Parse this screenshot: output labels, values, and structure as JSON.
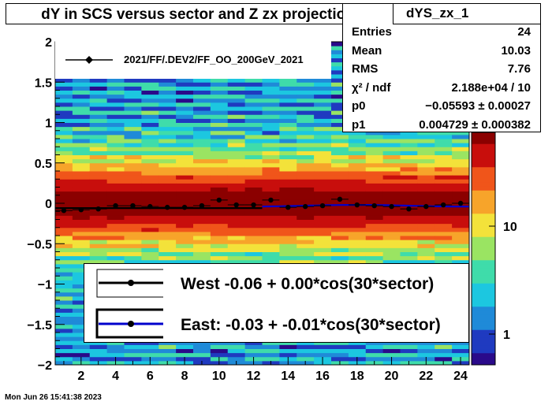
{
  "chart_data": {
    "type": "heatmap",
    "title": "dY in SCS versus sector and Z zx projection",
    "xlim": [
      0.5,
      24.5
    ],
    "ylim": [
      -2,
      2
    ],
    "x_ticks": [
      "2",
      "4",
      "6",
      "8",
      "10",
      "12",
      "14",
      "16",
      "18",
      "20",
      "22",
      "24"
    ],
    "y_ticks": [
      "−2",
      "−1.5",
      "−1",
      "−0.5",
      "0",
      "0.5",
      "1",
      "1.5",
      "2"
    ],
    "color_scale": {
      "type": "log",
      "ticks": [
        "1",
        "10"
      ],
      "palette": [
        "#2a0a8a",
        "#1f3ac0",
        "#1f8ad8",
        "#1cc7e0",
        "#3fdcaa",
        "#9ae462",
        "#f3e23a",
        "#f7a42a",
        "#f0551a",
        "#c80e0c",
        "#8b0000"
      ]
    },
    "profile": {
      "name": "2021/FF/.DEV2/FF_OO_200GeV_2021",
      "x": [
        1,
        2,
        3,
        4,
        5,
        6,
        7,
        8,
        9,
        10,
        11,
        12,
        13,
        14,
        15,
        16,
        17,
        18,
        19,
        20,
        21,
        22,
        23,
        24
      ],
      "y": [
        -0.09,
        -0.08,
        -0.07,
        -0.03,
        -0.03,
        -0.04,
        -0.05,
        -0.05,
        -0.03,
        0.04,
        -0.02,
        -0.02,
        0.04,
        -0.05,
        -0.04,
        -0.03,
        0.05,
        -0.02,
        -0.03,
        -0.04,
        -0.07,
        -0.04,
        -0.02,
        0.0
      ]
    },
    "fits": [
      {
        "name": "West -0.06 +  0.00*cos(30*sector)",
        "color": "#000000",
        "x_range": [
          0.5,
          12.5
        ],
        "p0": -0.06,
        "p1": 0.0
      },
      {
        "name": "East: -0.03 + -0.01*cos(30*sector)",
        "color": "#0000cc",
        "x_range": [
          12.5,
          24.5
        ],
        "p0": -0.03,
        "p1": -0.01
      }
    ]
  },
  "stats": {
    "name": "dYS_zx_1",
    "rows": [
      {
        "label": "Entries",
        "value": "24"
      },
      {
        "label": "Mean",
        "value": "10.03"
      },
      {
        "label": "RMS",
        "value": "7.76"
      },
      {
        "label": "χ² / ndf",
        "value": "2.188e+04 / 10"
      },
      {
        "label": "p0",
        "value": "−0.05593 ± 0.00027"
      },
      {
        "label": "p1",
        "value": "0.004729 ± 0.000382"
      }
    ]
  },
  "footer": {
    "date": "Mon Jun 26 15:41:38 2023"
  }
}
